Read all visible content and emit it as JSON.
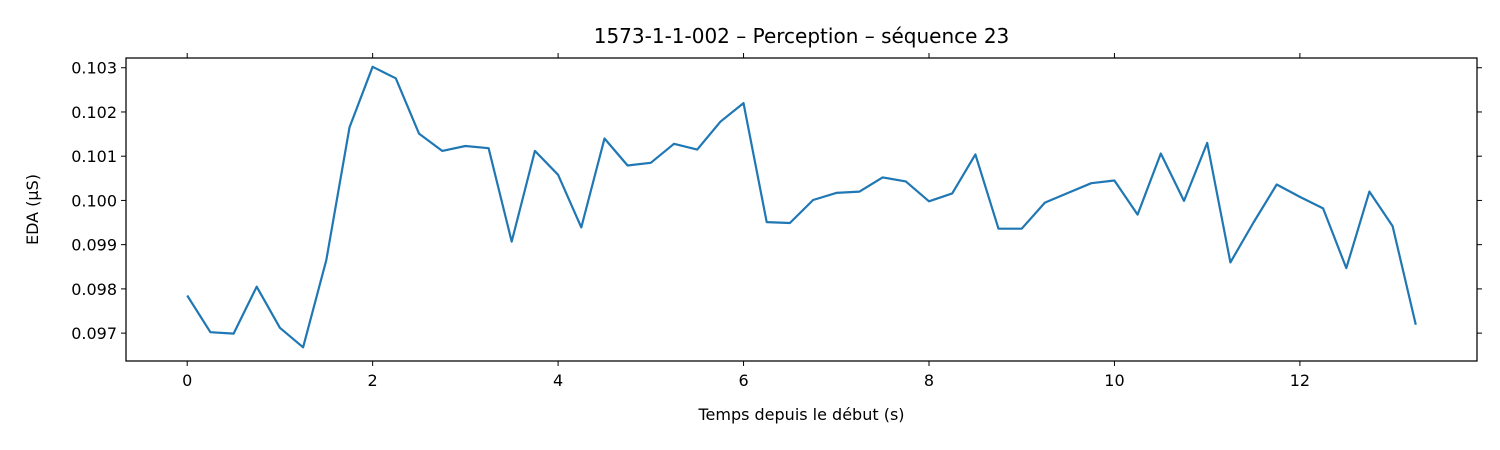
{
  "chart_data": {
    "type": "line",
    "title": "1573-1-1-002 – Perception – séquence 23",
    "xlabel": "Temps depuis le début (s)",
    "ylabel": "EDA (µS)",
    "xlim": [
      -0.66,
      13.91
    ],
    "ylim": [
      0.09637,
      0.10322
    ],
    "xticks": [
      0,
      2,
      4,
      6,
      8,
      10,
      12
    ],
    "xtick_labels": [
      "0",
      "2",
      "4",
      "6",
      "8",
      "10",
      "12"
    ],
    "yticks": [
      0.097,
      0.098,
      0.099,
      0.1,
      0.101,
      0.102,
      0.103
    ],
    "ytick_labels": [
      "0.097",
      "0.098",
      "0.099",
      "0.100",
      "0.101",
      "0.102",
      "0.103"
    ],
    "grid": false,
    "color": "#1f77b4",
    "series": [
      {
        "x": [
          0,
          0.25,
          0.5,
          0.75,
          1.0,
          1.25,
          1.5,
          1.75,
          2.0,
          2.25,
          2.5,
          2.75,
          3.0,
          3.25,
          3.5,
          3.75,
          4.0,
          4.25,
          4.5,
          4.75,
          5.0,
          5.25,
          5.5,
          5.75,
          6.0,
          6.25,
          6.5,
          6.75,
          7.0,
          7.25,
          7.5,
          7.75,
          8.0,
          8.25,
          8.5,
          8.75,
          9.0,
          9.25,
          9.5,
          9.75,
          10.0,
          10.25,
          10.5,
          10.75,
          11.0,
          11.25,
          11.5,
          11.75,
          12.0,
          12.25,
          12.5,
          12.75,
          13.0,
          13.25
        ],
        "values": [
          0.09785,
          0.09702,
          0.09699,
          0.09805,
          0.09712,
          0.09668,
          0.09865,
          0.10165,
          0.10302,
          0.10276,
          0.10151,
          0.10112,
          0.10123,
          0.10118,
          0.09907,
          0.10112,
          0.10058,
          0.09939,
          0.1014,
          0.10079,
          0.10085,
          0.10128,
          0.10115,
          0.10178,
          0.1022,
          0.09951,
          0.09949,
          0.10001,
          0.10017,
          0.1002,
          0.10052,
          0.10043,
          0.09998,
          0.10016,
          0.10104,
          0.09936,
          0.09936,
          0.09995,
          0.10017,
          0.10039,
          0.10045,
          0.09968,
          0.10106,
          0.09999,
          0.1013,
          0.0986,
          0.0995,
          0.10036,
          0.10008,
          0.09982,
          0.09847,
          0.1002,
          0.09942,
          0.09719
        ]
      }
    ]
  }
}
